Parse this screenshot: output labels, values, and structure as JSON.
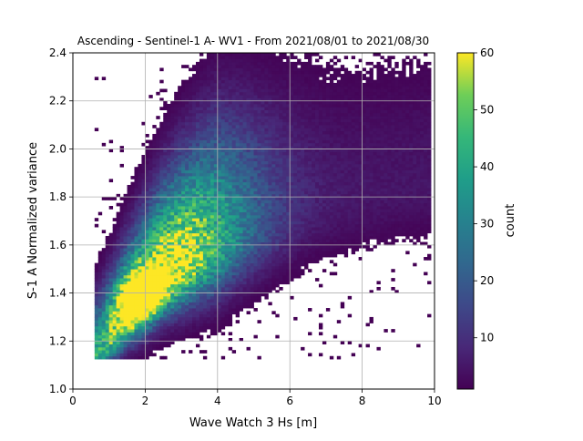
{
  "chart_data": {
    "type": "heatmap",
    "title": "Ascending - Sentinel-1 A- WV1 - From 2021/08/01 to 2021/08/30",
    "xlabel": "Wave Watch 3 Hs [m]",
    "ylabel": "S-1 A Normalized variance",
    "xlim": [
      0,
      10
    ],
    "ylim": [
      1.0,
      2.4
    ],
    "xticks": [
      "0",
      "2",
      "4",
      "6",
      "8",
      "10"
    ],
    "yticks": [
      "1.0",
      "1.2",
      "1.4",
      "1.6",
      "1.8",
      "2.0",
      "2.2",
      "2.4"
    ],
    "grid": true,
    "colormap": "viridis",
    "colorbar": {
      "label": "count",
      "range": [
        1,
        60
      ],
      "ticks": [
        "10",
        "20",
        "30",
        "40",
        "50",
        "60"
      ]
    },
    "density_peak": {
      "x": 1.8,
      "y": 1.38,
      "count": 60
    },
    "ridge": [
      {
        "x": 0.7,
        "y": 1.15
      },
      {
        "x": 1.5,
        "y": 1.3
      },
      {
        "x": 2.5,
        "y": 1.46
      },
      {
        "x": 3.5,
        "y": 1.56
      },
      {
        "x": 4.5,
        "y": 1.64
      },
      {
        "x": 5.5,
        "y": 1.7
      },
      {
        "x": 6.5,
        "y": 1.76
      },
      {
        "x": 8.0,
        "y": 1.8
      },
      {
        "x": 9.8,
        "y": 1.85
      }
    ],
    "bins": {
      "x_width": 0.1,
      "y_width": 0.0125
    }
  }
}
